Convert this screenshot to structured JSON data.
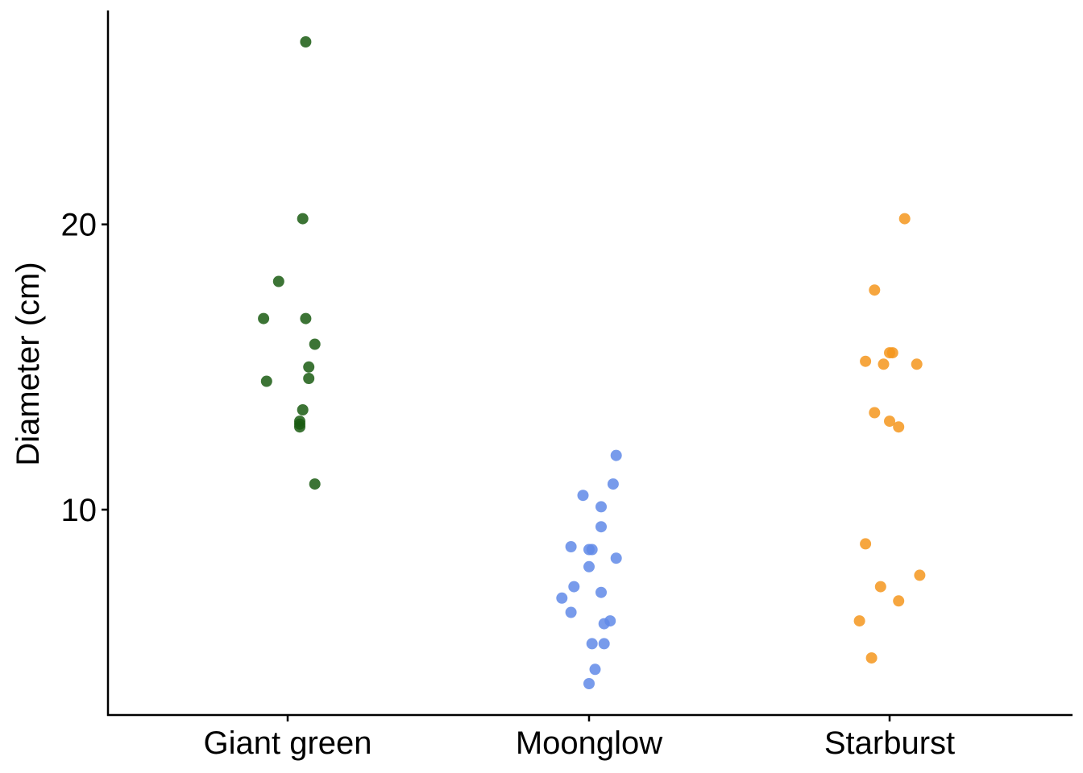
{
  "chart_data": {
    "type": "scatter",
    "title": "",
    "xlabel": "",
    "ylabel": "Diameter (cm)",
    "categories": [
      "Giant green",
      "Moonglow",
      "Starburst"
    ],
    "ylim": [
      2.8,
      27.5
    ],
    "yticks": [
      10,
      20
    ],
    "grid": false,
    "legend": "none",
    "series": [
      {
        "category": "Giant green",
        "color": "#1a5c12",
        "points": [
          {
            "jitter": 0.06,
            "y": 26.4
          },
          {
            "jitter": 0.05,
            "y": 20.2
          },
          {
            "jitter": -0.03,
            "y": 18.0
          },
          {
            "jitter": -0.08,
            "y": 16.7
          },
          {
            "jitter": 0.06,
            "y": 16.7
          },
          {
            "jitter": 0.09,
            "y": 15.8
          },
          {
            "jitter": 0.07,
            "y": 15.0
          },
          {
            "jitter": 0.07,
            "y": 14.6
          },
          {
            "jitter": -0.07,
            "y": 14.5
          },
          {
            "jitter": 0.05,
            "y": 13.5
          },
          {
            "jitter": 0.04,
            "y": 13.1
          },
          {
            "jitter": 0.04,
            "y": 13.0
          },
          {
            "jitter": 0.04,
            "y": 12.9
          },
          {
            "jitter": 0.09,
            "y": 10.9
          }
        ]
      },
      {
        "category": "Moonglow",
        "color": "#6089e8",
        "points": [
          {
            "jitter": 0.09,
            "y": 11.9
          },
          {
            "jitter": 0.08,
            "y": 10.9
          },
          {
            "jitter": -0.02,
            "y": 10.5
          },
          {
            "jitter": 0.04,
            "y": 10.1
          },
          {
            "jitter": 0.04,
            "y": 9.4
          },
          {
            "jitter": -0.06,
            "y": 8.7
          },
          {
            "jitter": 0.0,
            "y": 8.6
          },
          {
            "jitter": 0.01,
            "y": 8.6
          },
          {
            "jitter": 0.09,
            "y": 8.3
          },
          {
            "jitter": 0.0,
            "y": 8.0
          },
          {
            "jitter": -0.05,
            "y": 7.3
          },
          {
            "jitter": 0.04,
            "y": 7.1
          },
          {
            "jitter": -0.09,
            "y": 6.9
          },
          {
            "jitter": -0.06,
            "y": 6.4
          },
          {
            "jitter": 0.07,
            "y": 6.1
          },
          {
            "jitter": 0.05,
            "y": 6.0
          },
          {
            "jitter": 0.01,
            "y": 5.3
          },
          {
            "jitter": 0.05,
            "y": 5.3
          },
          {
            "jitter": 0.02,
            "y": 4.4
          },
          {
            "jitter": 0.0,
            "y": 3.9
          }
        ]
      },
      {
        "category": "Starburst",
        "color": "#f5961d",
        "points": [
          {
            "jitter": 0.05,
            "y": 20.2
          },
          {
            "jitter": -0.05,
            "y": 17.7
          },
          {
            "jitter": 0.0,
            "y": 15.5
          },
          {
            "jitter": 0.01,
            "y": 15.5
          },
          {
            "jitter": -0.08,
            "y": 15.2
          },
          {
            "jitter": -0.02,
            "y": 15.1
          },
          {
            "jitter": 0.09,
            "y": 15.1
          },
          {
            "jitter": -0.05,
            "y": 13.4
          },
          {
            "jitter": 0.0,
            "y": 13.1
          },
          {
            "jitter": 0.03,
            "y": 12.9
          },
          {
            "jitter": -0.08,
            "y": 8.8
          },
          {
            "jitter": 0.1,
            "y": 7.7
          },
          {
            "jitter": -0.03,
            "y": 7.3
          },
          {
            "jitter": 0.03,
            "y": 6.8
          },
          {
            "jitter": -0.1,
            "y": 6.1
          },
          {
            "jitter": -0.06,
            "y": 4.8
          }
        ]
      }
    ]
  }
}
